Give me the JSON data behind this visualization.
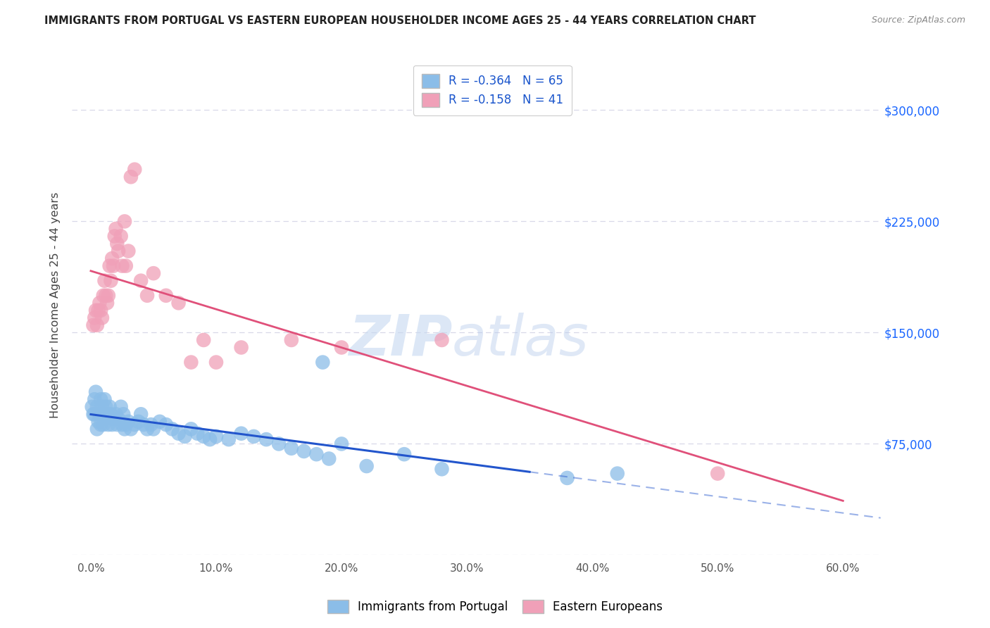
{
  "title": "IMMIGRANTS FROM PORTUGAL VS EASTERN EUROPEAN HOUSEHOLDER INCOME AGES 25 - 44 YEARS CORRELATION CHART",
  "source": "Source: ZipAtlas.com",
  "ylabel": "Householder Income Ages 25 - 44 years",
  "xlabel_ticks": [
    "0.0%",
    "10.0%",
    "20.0%",
    "30.0%",
    "40.0%",
    "50.0%",
    "60.0%"
  ],
  "xlabel_vals": [
    0,
    10,
    20,
    30,
    40,
    50,
    60
  ],
  "ylim": [
    0,
    337500
  ],
  "xlim": [
    -1.5,
    63
  ],
  "ytick_vals": [
    0,
    75000,
    150000,
    225000,
    300000
  ],
  "ytick_labels": [
    "",
    "$75,000",
    "$150,000",
    "$225,000",
    "$300,000"
  ],
  "watermark": "ZIPatlas",
  "series": [
    {
      "name": "Immigrants from Portugal",
      "R": -0.364,
      "N": 65,
      "color": "#8bbde8",
      "line_color": "#2255cc",
      "x": [
        0.1,
        0.2,
        0.3,
        0.3,
        0.4,
        0.5,
        0.5,
        0.6,
        0.7,
        0.8,
        0.8,
        0.9,
        1.0,
        1.0,
        1.1,
        1.2,
        1.3,
        1.4,
        1.5,
        1.6,
        1.7,
        1.8,
        2.0,
        2.1,
        2.2,
        2.4,
        2.5,
        2.6,
        2.7,
        2.8,
        3.0,
        3.2,
        3.5,
        3.8,
        4.0,
        4.2,
        4.5,
        4.8,
        5.0,
        5.5,
        6.0,
        6.5,
        7.0,
        7.5,
        8.0,
        8.5,
        9.0,
        9.5,
        10.0,
        11.0,
        12.0,
        13.0,
        14.0,
        15.0,
        16.0,
        17.0,
        18.0,
        19.0,
        20.0,
        22.0,
        25.0,
        28.0,
        38.0,
        42.0,
        18.5
      ],
      "y": [
        100000,
        95000,
        105000,
        95000,
        110000,
        100000,
        85000,
        90000,
        95000,
        105000,
        88000,
        100000,
        95000,
        88000,
        105000,
        100000,
        95000,
        88000,
        100000,
        95000,
        88000,
        92000,
        95000,
        88000,
        92000,
        100000,
        88000,
        95000,
        85000,
        88000,
        90000,
        85000,
        88000,
        90000,
        95000,
        88000,
        85000,
        88000,
        85000,
        90000,
        88000,
        85000,
        82000,
        80000,
        85000,
        82000,
        80000,
        78000,
        80000,
        78000,
        82000,
        80000,
        78000,
        75000,
        72000,
        70000,
        68000,
        65000,
        75000,
        60000,
        68000,
        58000,
        52000,
        55000,
        130000
      ]
    },
    {
      "name": "Eastern Europeans",
      "R": -0.158,
      "N": 41,
      "color": "#f0a0b8",
      "line_color": "#e0507a",
      "x": [
        0.2,
        0.3,
        0.4,
        0.5,
        0.6,
        0.7,
        0.8,
        0.9,
        1.0,
        1.1,
        1.2,
        1.3,
        1.4,
        1.5,
        1.6,
        1.7,
        1.8,
        1.9,
        2.0,
        2.1,
        2.2,
        2.4,
        2.5,
        2.7,
        2.8,
        3.0,
        3.2,
        3.5,
        4.0,
        4.5,
        5.0,
        6.0,
        7.0,
        8.0,
        9.0,
        10.0,
        12.0,
        16.0,
        20.0,
        28.0,
        50.0
      ],
      "y": [
        155000,
        160000,
        165000,
        155000,
        165000,
        170000,
        165000,
        160000,
        175000,
        185000,
        175000,
        170000,
        175000,
        195000,
        185000,
        200000,
        195000,
        215000,
        220000,
        210000,
        205000,
        215000,
        195000,
        225000,
        195000,
        205000,
        255000,
        260000,
        185000,
        175000,
        190000,
        175000,
        170000,
        130000,
        145000,
        130000,
        140000,
        145000,
        140000,
        145000,
        55000
      ]
    }
  ],
  "blue_line_solid_end": 35,
  "blue_line_dash_end": 63,
  "pink_line_start": 0,
  "pink_line_end": 60,
  "background_color": "#ffffff",
  "grid_color": "#d8d8e8",
  "title_color": "#333333",
  "axis_color": "#555555"
}
